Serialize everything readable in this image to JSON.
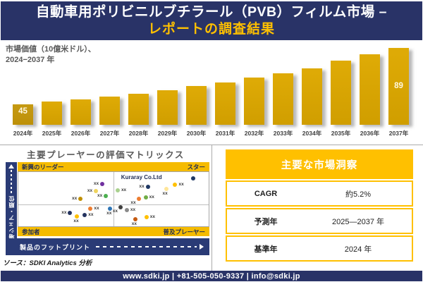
{
  "header": {
    "title_line1": "自動車用ポリビニルブチラール（PVB）フィルム市場 –",
    "title_line2": "レポートの調査結果"
  },
  "bar_section": {
    "subtitle_line1": "市場価値（10億米ドル）、",
    "subtitle_line2": "2024−2037 年"
  },
  "matrix": {
    "title": "主要プレーヤーの評価マトリックス",
    "x_axis_label": "製品のフットプリント",
    "y_axis_label": "市場シェア・順位",
    "quadrant_top_left": "新興のリーダー",
    "quadrant_top_right": "スター",
    "quadrant_bottom_left": "参加者",
    "quadrant_bottom_right": "普及プレーヤー",
    "annotation": "Kuraray Co.Ltd"
  },
  "insights": {
    "title": "主要な市場洞察",
    "rows": [
      {
        "label": "CAGR",
        "value": "約5.2%"
      },
      {
        "label": "予測年",
        "value": "2025—2037 年"
      },
      {
        "label": "基準年",
        "value": "2024 年"
      }
    ]
  },
  "source_note": "ソース：SDKI Analytics 分析",
  "footer": {
    "text": "www.sdki.jp | +81-505-050-9337 | info@sdki.jp"
  },
  "colors": {
    "navy": "#293367",
    "gold": "#FFC000",
    "band_gold": "#F5BB00",
    "band_navy": "#2A3B76",
    "bar_gold": "#D6A401",
    "bar_first": "#C3970E"
  },
  "chart_data": [
    {
      "type": "bar",
      "title": "市場価値（10億米ドル）、2024−2037 年",
      "xlabel": "",
      "ylabel": "市場価値 (10億米ドル)",
      "categories": [
        "2024年",
        "2025年",
        "2026年",
        "2027年",
        "2028年",
        "2029年",
        "2030年",
        "2031年",
        "2032年",
        "2033年",
        "2034年",
        "2035年",
        "2036年",
        "2037年"
      ],
      "values": [
        45,
        47,
        49,
        51,
        53,
        56,
        59,
        62,
        66,
        69,
        73,
        79,
        84,
        89
      ],
      "shown_labels": [
        {
          "index": 0,
          "text": "45"
        },
        {
          "index": 13,
          "text": "89"
        }
      ],
      "ylim": [
        29,
        92
      ],
      "grid": false,
      "legend": "none"
    },
    {
      "type": "scatter",
      "title": "主要プレーヤーの評価マトリックス",
      "xlabel": "製品のフットプリント",
      "ylabel": "市場シェア・順位",
      "quadrants": {
        "top_left": "新興のリーダー",
        "top_right": "スター",
        "bottom_left": "参加者",
        "bottom_right": "普及プレーヤー"
      },
      "annotation": {
        "text": "Kuraray Co.Ltd",
        "x": 54,
        "y": 4
      },
      "points": [
        {
          "x": 44.1,
          "y": 21.5,
          "color": "#7030A0",
          "label": "xx",
          "label_pos": "left"
        },
        {
          "x": 40.8,
          "y": 35.4,
          "color": "#EFD35D",
          "label": "xx",
          "label_pos": "left"
        },
        {
          "x": 32.7,
          "y": 49.4,
          "color": "#BF8F00",
          "label": "xx",
          "label_pos": "left"
        },
        {
          "x": 46.0,
          "y": 44.3,
          "color": "#4CAF50",
          "label": "xx",
          "label_pos": "left"
        },
        {
          "x": 68.0,
          "y": 27.8,
          "color": "#1F3864",
          "label": "xx",
          "label_pos": "left"
        },
        {
          "x": 52.2,
          "y": 34.2,
          "color": "#A9D18E",
          "label": "xx",
          "label_pos": "right"
        },
        {
          "x": 77.6,
          "y": 31.6,
          "color": "#FFE699",
          "label": "xx",
          "label_pos": "below"
        },
        {
          "x": 82.4,
          "y": 22.8,
          "color": "#FFC000",
          "label": "xx",
          "label_pos": "right"
        },
        {
          "x": 91.9,
          "y": 11.4,
          "color": "#1F3864",
          "label": "",
          "label_pos": "none"
        },
        {
          "x": 63.2,
          "y": 49.4,
          "color": "#ED7D31",
          "label": "xx",
          "label_pos": "belowleft"
        },
        {
          "x": 66.9,
          "y": 46.8,
          "color": "#70AD47",
          "label": "xx",
          "label_pos": "right"
        },
        {
          "x": 37.9,
          "y": 67.1,
          "color": "#ED7D31",
          "label": "xx",
          "label_pos": "right"
        },
        {
          "x": 48.2,
          "y": 67.1,
          "color": "#2E75B6",
          "label": "xx",
          "label_pos": "below"
        },
        {
          "x": 27.2,
          "y": 74.7,
          "color": "#24335F",
          "label": "xx",
          "label_pos": "left"
        },
        {
          "x": 30.9,
          "y": 82.3,
          "color": "#FFC000",
          "label": "xx",
          "label_pos": "below"
        },
        {
          "x": 34.9,
          "y": 79.7,
          "color": "#24335F",
          "label": "xx",
          "label_pos": "right"
        },
        {
          "x": 53.7,
          "y": 64.6,
          "color": "#404040",
          "label": "xx",
          "label_pos": "belowleft"
        },
        {
          "x": 57.0,
          "y": 69.6,
          "color": "#8A8A8A",
          "label": "xx",
          "label_pos": "right"
        },
        {
          "x": 61.4,
          "y": 87.3,
          "color": "#C55A11",
          "label": "xx",
          "label_pos": "below"
        },
        {
          "x": 67.3,
          "y": 83.5,
          "color": "#FFC000",
          "label": "xx",
          "label_pos": "right"
        }
      ]
    }
  ]
}
